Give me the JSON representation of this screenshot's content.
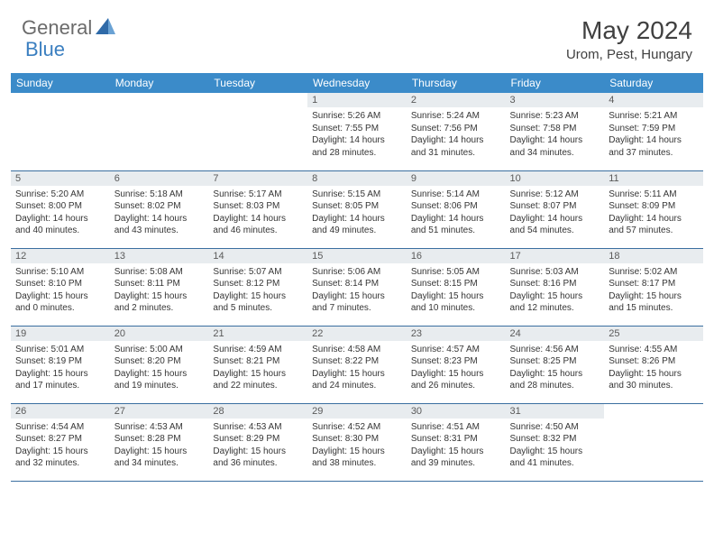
{
  "logo": {
    "part1": "General",
    "part2": "Blue"
  },
  "title": "May 2024",
  "location": "Urom, Pest, Hungary",
  "colors": {
    "header_bg": "#3b8bc9",
    "header_text": "#ffffff",
    "row_border": "#3b6fa0",
    "daynum_bg": "#e8ecef",
    "text": "#353535",
    "logo_gray": "#6b6b6b",
    "logo_blue": "#3b7fc0"
  },
  "weekdays": [
    "Sunday",
    "Monday",
    "Tuesday",
    "Wednesday",
    "Thursday",
    "Friday",
    "Saturday"
  ],
  "weeks": [
    [
      null,
      null,
      null,
      {
        "n": "1",
        "sr": "Sunrise: 5:26 AM",
        "ss": "Sunset: 7:55 PM",
        "d1": "Daylight: 14 hours",
        "d2": "and 28 minutes."
      },
      {
        "n": "2",
        "sr": "Sunrise: 5:24 AM",
        "ss": "Sunset: 7:56 PM",
        "d1": "Daylight: 14 hours",
        "d2": "and 31 minutes."
      },
      {
        "n": "3",
        "sr": "Sunrise: 5:23 AM",
        "ss": "Sunset: 7:58 PM",
        "d1": "Daylight: 14 hours",
        "d2": "and 34 minutes."
      },
      {
        "n": "4",
        "sr": "Sunrise: 5:21 AM",
        "ss": "Sunset: 7:59 PM",
        "d1": "Daylight: 14 hours",
        "d2": "and 37 minutes."
      }
    ],
    [
      {
        "n": "5",
        "sr": "Sunrise: 5:20 AM",
        "ss": "Sunset: 8:00 PM",
        "d1": "Daylight: 14 hours",
        "d2": "and 40 minutes."
      },
      {
        "n": "6",
        "sr": "Sunrise: 5:18 AM",
        "ss": "Sunset: 8:02 PM",
        "d1": "Daylight: 14 hours",
        "d2": "and 43 minutes."
      },
      {
        "n": "7",
        "sr": "Sunrise: 5:17 AM",
        "ss": "Sunset: 8:03 PM",
        "d1": "Daylight: 14 hours",
        "d2": "and 46 minutes."
      },
      {
        "n": "8",
        "sr": "Sunrise: 5:15 AM",
        "ss": "Sunset: 8:05 PM",
        "d1": "Daylight: 14 hours",
        "d2": "and 49 minutes."
      },
      {
        "n": "9",
        "sr": "Sunrise: 5:14 AM",
        "ss": "Sunset: 8:06 PM",
        "d1": "Daylight: 14 hours",
        "d2": "and 51 minutes."
      },
      {
        "n": "10",
        "sr": "Sunrise: 5:12 AM",
        "ss": "Sunset: 8:07 PM",
        "d1": "Daylight: 14 hours",
        "d2": "and 54 minutes."
      },
      {
        "n": "11",
        "sr": "Sunrise: 5:11 AM",
        "ss": "Sunset: 8:09 PM",
        "d1": "Daylight: 14 hours",
        "d2": "and 57 minutes."
      }
    ],
    [
      {
        "n": "12",
        "sr": "Sunrise: 5:10 AM",
        "ss": "Sunset: 8:10 PM",
        "d1": "Daylight: 15 hours",
        "d2": "and 0 minutes."
      },
      {
        "n": "13",
        "sr": "Sunrise: 5:08 AM",
        "ss": "Sunset: 8:11 PM",
        "d1": "Daylight: 15 hours",
        "d2": "and 2 minutes."
      },
      {
        "n": "14",
        "sr": "Sunrise: 5:07 AM",
        "ss": "Sunset: 8:12 PM",
        "d1": "Daylight: 15 hours",
        "d2": "and 5 minutes."
      },
      {
        "n": "15",
        "sr": "Sunrise: 5:06 AM",
        "ss": "Sunset: 8:14 PM",
        "d1": "Daylight: 15 hours",
        "d2": "and 7 minutes."
      },
      {
        "n": "16",
        "sr": "Sunrise: 5:05 AM",
        "ss": "Sunset: 8:15 PM",
        "d1": "Daylight: 15 hours",
        "d2": "and 10 minutes."
      },
      {
        "n": "17",
        "sr": "Sunrise: 5:03 AM",
        "ss": "Sunset: 8:16 PM",
        "d1": "Daylight: 15 hours",
        "d2": "and 12 minutes."
      },
      {
        "n": "18",
        "sr": "Sunrise: 5:02 AM",
        "ss": "Sunset: 8:17 PM",
        "d1": "Daylight: 15 hours",
        "d2": "and 15 minutes."
      }
    ],
    [
      {
        "n": "19",
        "sr": "Sunrise: 5:01 AM",
        "ss": "Sunset: 8:19 PM",
        "d1": "Daylight: 15 hours",
        "d2": "and 17 minutes."
      },
      {
        "n": "20",
        "sr": "Sunrise: 5:00 AM",
        "ss": "Sunset: 8:20 PM",
        "d1": "Daylight: 15 hours",
        "d2": "and 19 minutes."
      },
      {
        "n": "21",
        "sr": "Sunrise: 4:59 AM",
        "ss": "Sunset: 8:21 PM",
        "d1": "Daylight: 15 hours",
        "d2": "and 22 minutes."
      },
      {
        "n": "22",
        "sr": "Sunrise: 4:58 AM",
        "ss": "Sunset: 8:22 PM",
        "d1": "Daylight: 15 hours",
        "d2": "and 24 minutes."
      },
      {
        "n": "23",
        "sr": "Sunrise: 4:57 AM",
        "ss": "Sunset: 8:23 PM",
        "d1": "Daylight: 15 hours",
        "d2": "and 26 minutes."
      },
      {
        "n": "24",
        "sr": "Sunrise: 4:56 AM",
        "ss": "Sunset: 8:25 PM",
        "d1": "Daylight: 15 hours",
        "d2": "and 28 minutes."
      },
      {
        "n": "25",
        "sr": "Sunrise: 4:55 AM",
        "ss": "Sunset: 8:26 PM",
        "d1": "Daylight: 15 hours",
        "d2": "and 30 minutes."
      }
    ],
    [
      {
        "n": "26",
        "sr": "Sunrise: 4:54 AM",
        "ss": "Sunset: 8:27 PM",
        "d1": "Daylight: 15 hours",
        "d2": "and 32 minutes."
      },
      {
        "n": "27",
        "sr": "Sunrise: 4:53 AM",
        "ss": "Sunset: 8:28 PM",
        "d1": "Daylight: 15 hours",
        "d2": "and 34 minutes."
      },
      {
        "n": "28",
        "sr": "Sunrise: 4:53 AM",
        "ss": "Sunset: 8:29 PM",
        "d1": "Daylight: 15 hours",
        "d2": "and 36 minutes."
      },
      {
        "n": "29",
        "sr": "Sunrise: 4:52 AM",
        "ss": "Sunset: 8:30 PM",
        "d1": "Daylight: 15 hours",
        "d2": "and 38 minutes."
      },
      {
        "n": "30",
        "sr": "Sunrise: 4:51 AM",
        "ss": "Sunset: 8:31 PM",
        "d1": "Daylight: 15 hours",
        "d2": "and 39 minutes."
      },
      {
        "n": "31",
        "sr": "Sunrise: 4:50 AM",
        "ss": "Sunset: 8:32 PM",
        "d1": "Daylight: 15 hours",
        "d2": "and 41 minutes."
      },
      null
    ]
  ]
}
